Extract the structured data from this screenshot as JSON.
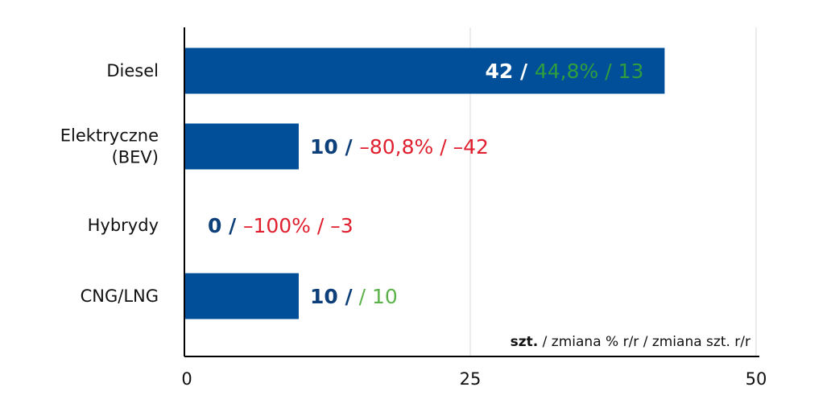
{
  "chart_data": {
    "type": "bar",
    "orientation": "horizontal",
    "categories": [
      [
        "Diesel"
      ],
      [
        "Elektryczne",
        "(BEV)"
      ],
      [
        "Hybrydy"
      ],
      [
        "CNG/LNG"
      ]
    ],
    "values": [
      42,
      10,
      0,
      10
    ],
    "bar_labels": [
      {
        "count": "42",
        "sep": " / ",
        "pct": "44,8%",
        "sep2": " / ",
        "diff": "13",
        "pct_color": "#2e9e3e",
        "diff_color": "#2e9e3e"
      },
      {
        "count": "10",
        "sep": " / ",
        "pct": "–80,8%",
        "sep2": " / ",
        "diff": "–42",
        "pct_color": "#e0202e",
        "diff_color": "#e0202e"
      },
      {
        "count": "0",
        "sep": " / ",
        "pct": "–100%",
        "sep2": " / ",
        "diff": "–3",
        "pct_color": "#e0202e",
        "diff_color": "#e0202e"
      },
      {
        "count": "10",
        "sep": " /",
        "pct": "",
        "sep2": "   / ",
        "diff": "10",
        "pct_color": "#5cb24a",
        "diff_color": "#5cb24a"
      }
    ],
    "xlim": [
      0,
      50
    ],
    "xticks": [
      "0",
      "25",
      "50"
    ],
    "grid": true,
    "legend_note": {
      "bold": "szt.",
      "rest": " / zmiana % r/r / zmiana szt. r/r"
    },
    "colors": {
      "bar": "#004f98",
      "count_dark": "#0d3f7a",
      "count_on_bar": "#ffffff",
      "category_text": "#111111",
      "grid": "#d9d9d9",
      "axis": "#000000"
    }
  }
}
